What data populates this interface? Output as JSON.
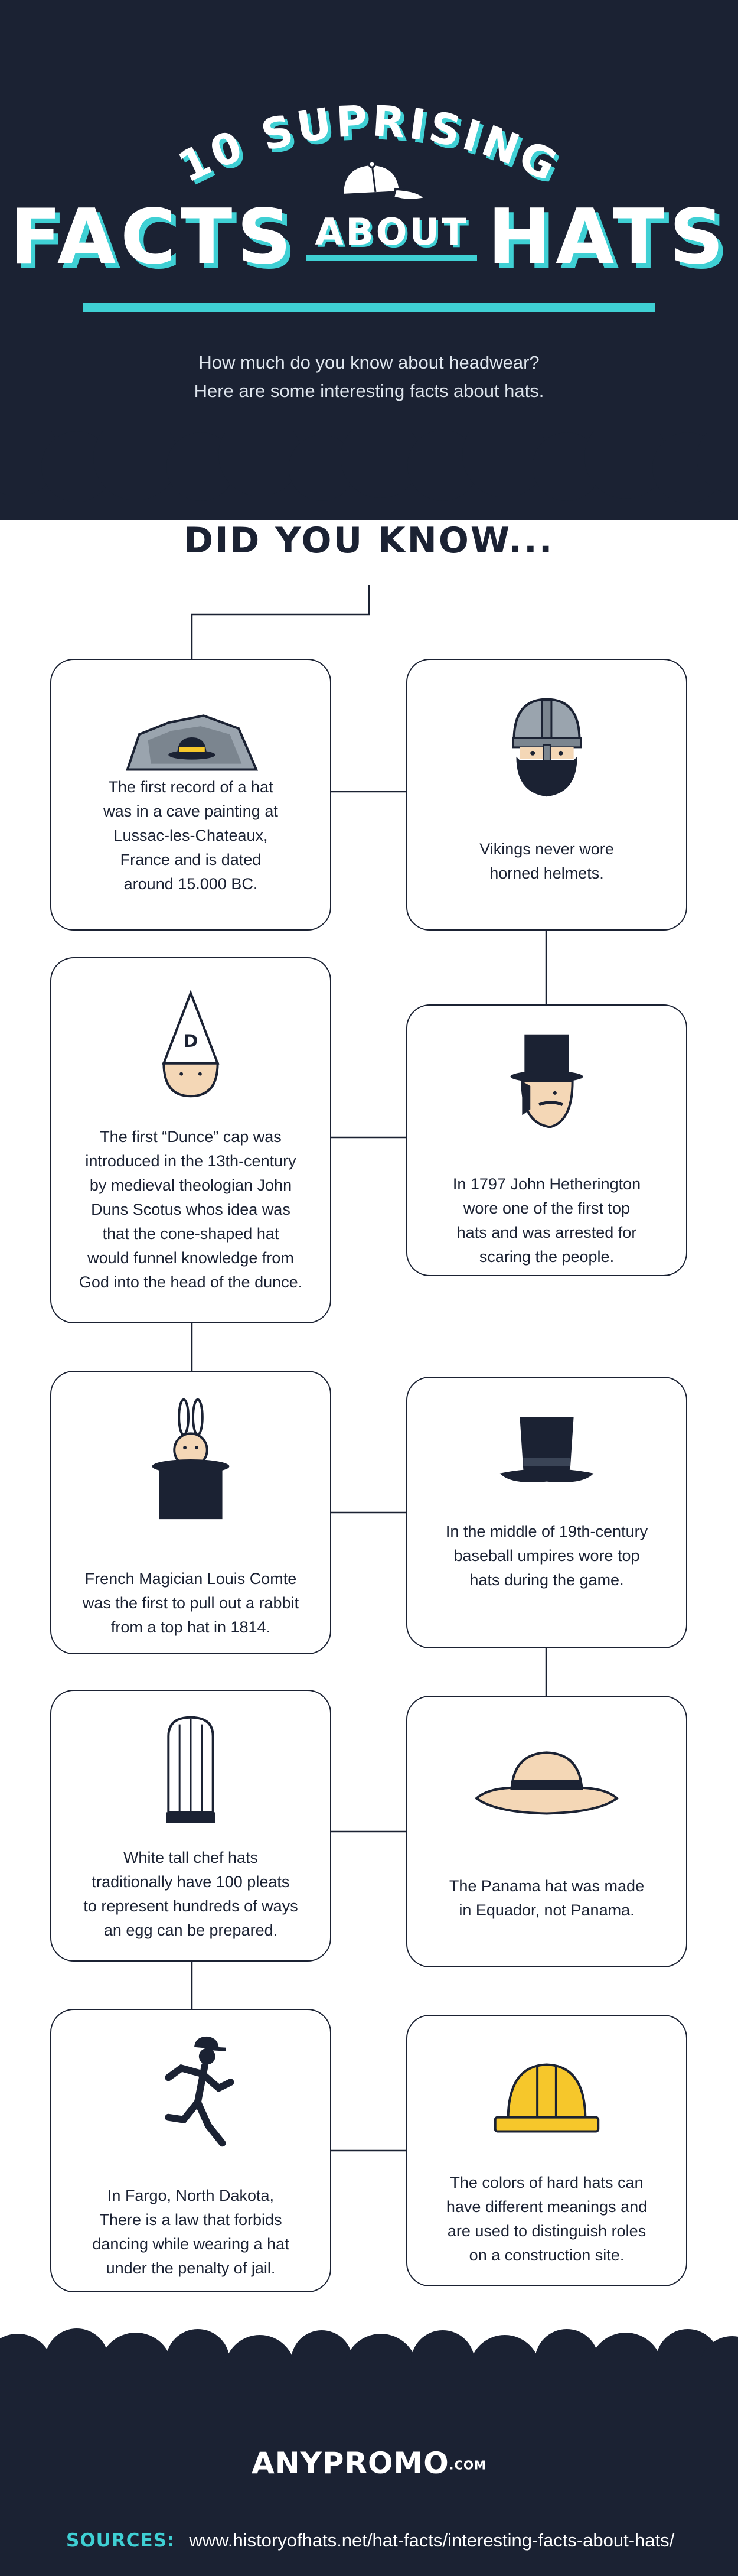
{
  "header": {
    "title_top": "10 SUPRISING",
    "title_left": "FACTS",
    "title_mid": "ABOUT",
    "title_right": "HATS",
    "subtitle_line1": "How much do you know about headwear?",
    "subtitle_line2": "Here are some interesting facts about hats."
  },
  "did_you_know": "DID YOU KNOW...",
  "facts": [
    {
      "icon": "cave-painting-hat-icon",
      "lines": [
        "The first record of a hat",
        "was in a cave painting at",
        "Lussac-les-Chateaux,",
        "France and is dated",
        "around 15.000 BC."
      ]
    },
    {
      "icon": "viking-helmet-icon",
      "lines": [
        "Vikings never wore",
        "horned helmets."
      ]
    },
    {
      "icon": "dunce-cap-icon",
      "lines": [
        "The first “Dunce” cap was",
        "introduced in the 13th-century",
        "by medieval theologian John",
        "Duns Scotus whos idea was",
        "that the cone-shaped hat",
        "would funnel knowledge from",
        "God into the head of the dunce."
      ]
    },
    {
      "icon": "top-hat-man-icon",
      "lines": [
        "In 1797 John Hetherington",
        "wore one of the first top",
        "hats and was arrested for",
        "scaring the people."
      ]
    },
    {
      "icon": "rabbit-in-hat-icon",
      "lines": [
        "French Magician Louis Comte",
        "was the first to pull out a rabbit",
        "from a top hat in 1814."
      ]
    },
    {
      "icon": "top-hat-icon",
      "lines": [
        "In the middle of 19th-century",
        "baseball umpires wore top",
        "hats during the game."
      ]
    },
    {
      "icon": "chef-hat-icon",
      "lines": [
        "White tall chef hats",
        "traditionally have 100 pleats",
        "to represent hundreds of ways",
        "an egg can be prepared."
      ]
    },
    {
      "icon": "panama-hat-icon",
      "lines": [
        "The Panama hat was made",
        "in Equador, not Panama."
      ]
    },
    {
      "icon": "dancing-man-icon",
      "lines": [
        "In Fargo, North Dakota,",
        "There is a law that forbids",
        "dancing while wearing a hat",
        "under the penalty of jail."
      ]
    },
    {
      "icon": "hard-hat-icon",
      "lines": [
        "The colors of hard hats can",
        "have different meanings and",
        "are used to distinguish roles",
        "on a construction site."
      ]
    }
  ],
  "footer": {
    "logo_main": "ANYPROMO",
    "logo_suffix": ".COM",
    "sources_label": "SOURCES:",
    "sources_url": "www.historyofhats.net/hat-facts/interesting-facts-about-hats/"
  },
  "colors": {
    "navy": "#1b2233",
    "teal": "#3fd0d4",
    "yellow": "#f6c72b",
    "skin": "#f4d7b6"
  }
}
